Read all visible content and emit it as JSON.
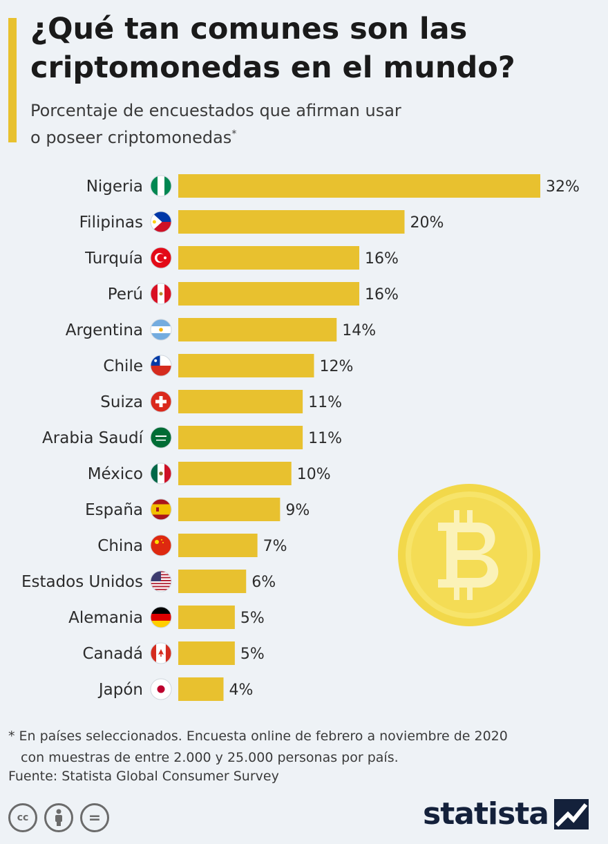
{
  "header": {
    "title_line1": "¿Qué tan comunes son las",
    "title_line2": "criptomonedas en el mundo?",
    "subtitle_line1": "Porcentaje de encuestados que afirman usar",
    "subtitle_line2": "o poseer criptomonedas",
    "subtitle_mark": "*"
  },
  "colors": {
    "bar": "#e8c12f",
    "accent": "#e8c12f",
    "background": "#eef2f6",
    "logo": "#14213b"
  },
  "chart_data": {
    "type": "bar",
    "orientation": "horizontal",
    "categories": [
      "Nigeria",
      "Filipinas",
      "Turquía",
      "Perú",
      "Argentina",
      "Chile",
      "Suiza",
      "Arabia Saudí",
      "México",
      "España",
      "China",
      "Estados Unidos",
      "Alemania",
      "Canadá",
      "Japón"
    ],
    "values": [
      32,
      20,
      16,
      16,
      14,
      12,
      11,
      11,
      10,
      9,
      7,
      6,
      5,
      5,
      4
    ],
    "value_labels": [
      "32%",
      "20%",
      "16%",
      "16%",
      "14%",
      "12%",
      "11%",
      "11%",
      "10%",
      "9%",
      "7%",
      "6%",
      "5%",
      "5%",
      "4%"
    ],
    "flag_icons": [
      "nigeria-flag-icon",
      "philippines-flag-icon",
      "turkey-flag-icon",
      "peru-flag-icon",
      "argentina-flag-icon",
      "chile-flag-icon",
      "switzerland-flag-icon",
      "saudi-arabia-flag-icon",
      "mexico-flag-icon",
      "spain-flag-icon",
      "china-flag-icon",
      "usa-flag-icon",
      "germany-flag-icon",
      "canada-flag-icon",
      "japan-flag-icon"
    ],
    "xlim": [
      0,
      32
    ],
    "grid": false,
    "legend": "none"
  },
  "footer": {
    "note_line1": "* En países seleccionados. Encuesta online de febrero a noviembre de 2020",
    "note_line2": "con muestras de entre 2.000 y 25.000 personas por país.",
    "source": "Fuente: Statista Global Consumer Survey",
    "cc_label": "cc",
    "equal_label": "=",
    "logo": "statista"
  }
}
